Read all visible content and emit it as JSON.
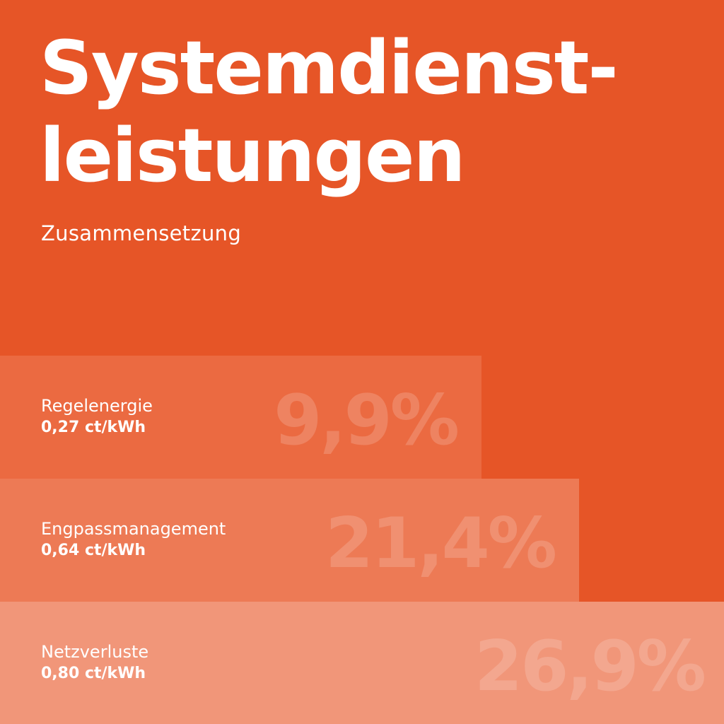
{
  "title_line1": "Systemdienst-",
  "title_line2": "leistungen",
  "subtitle": "Zusammensetzung",
  "colors": {
    "background": "#e65527",
    "bar_1": "#eb6a41",
    "bar_2": "#ed7a55",
    "bar_3": "#f19679",
    "text": "#ffffff"
  },
  "chart_data": {
    "type": "bar",
    "title": "Systemdienstleistungen",
    "subtitle": "Zusammensetzung",
    "categories": [
      "Regelenergie",
      "Engpassmanagement",
      "Netzverluste"
    ],
    "values": [
      9.9,
      21.4,
      26.9
    ],
    "value_labels": [
      "9,9%",
      "21,4%",
      "26,9%"
    ],
    "costs": [
      "0,27 ct/kWh",
      "0,64 ct/kWh",
      "0,80 ct/kWh"
    ],
    "unit": "%",
    "orientation": "horizontal"
  }
}
